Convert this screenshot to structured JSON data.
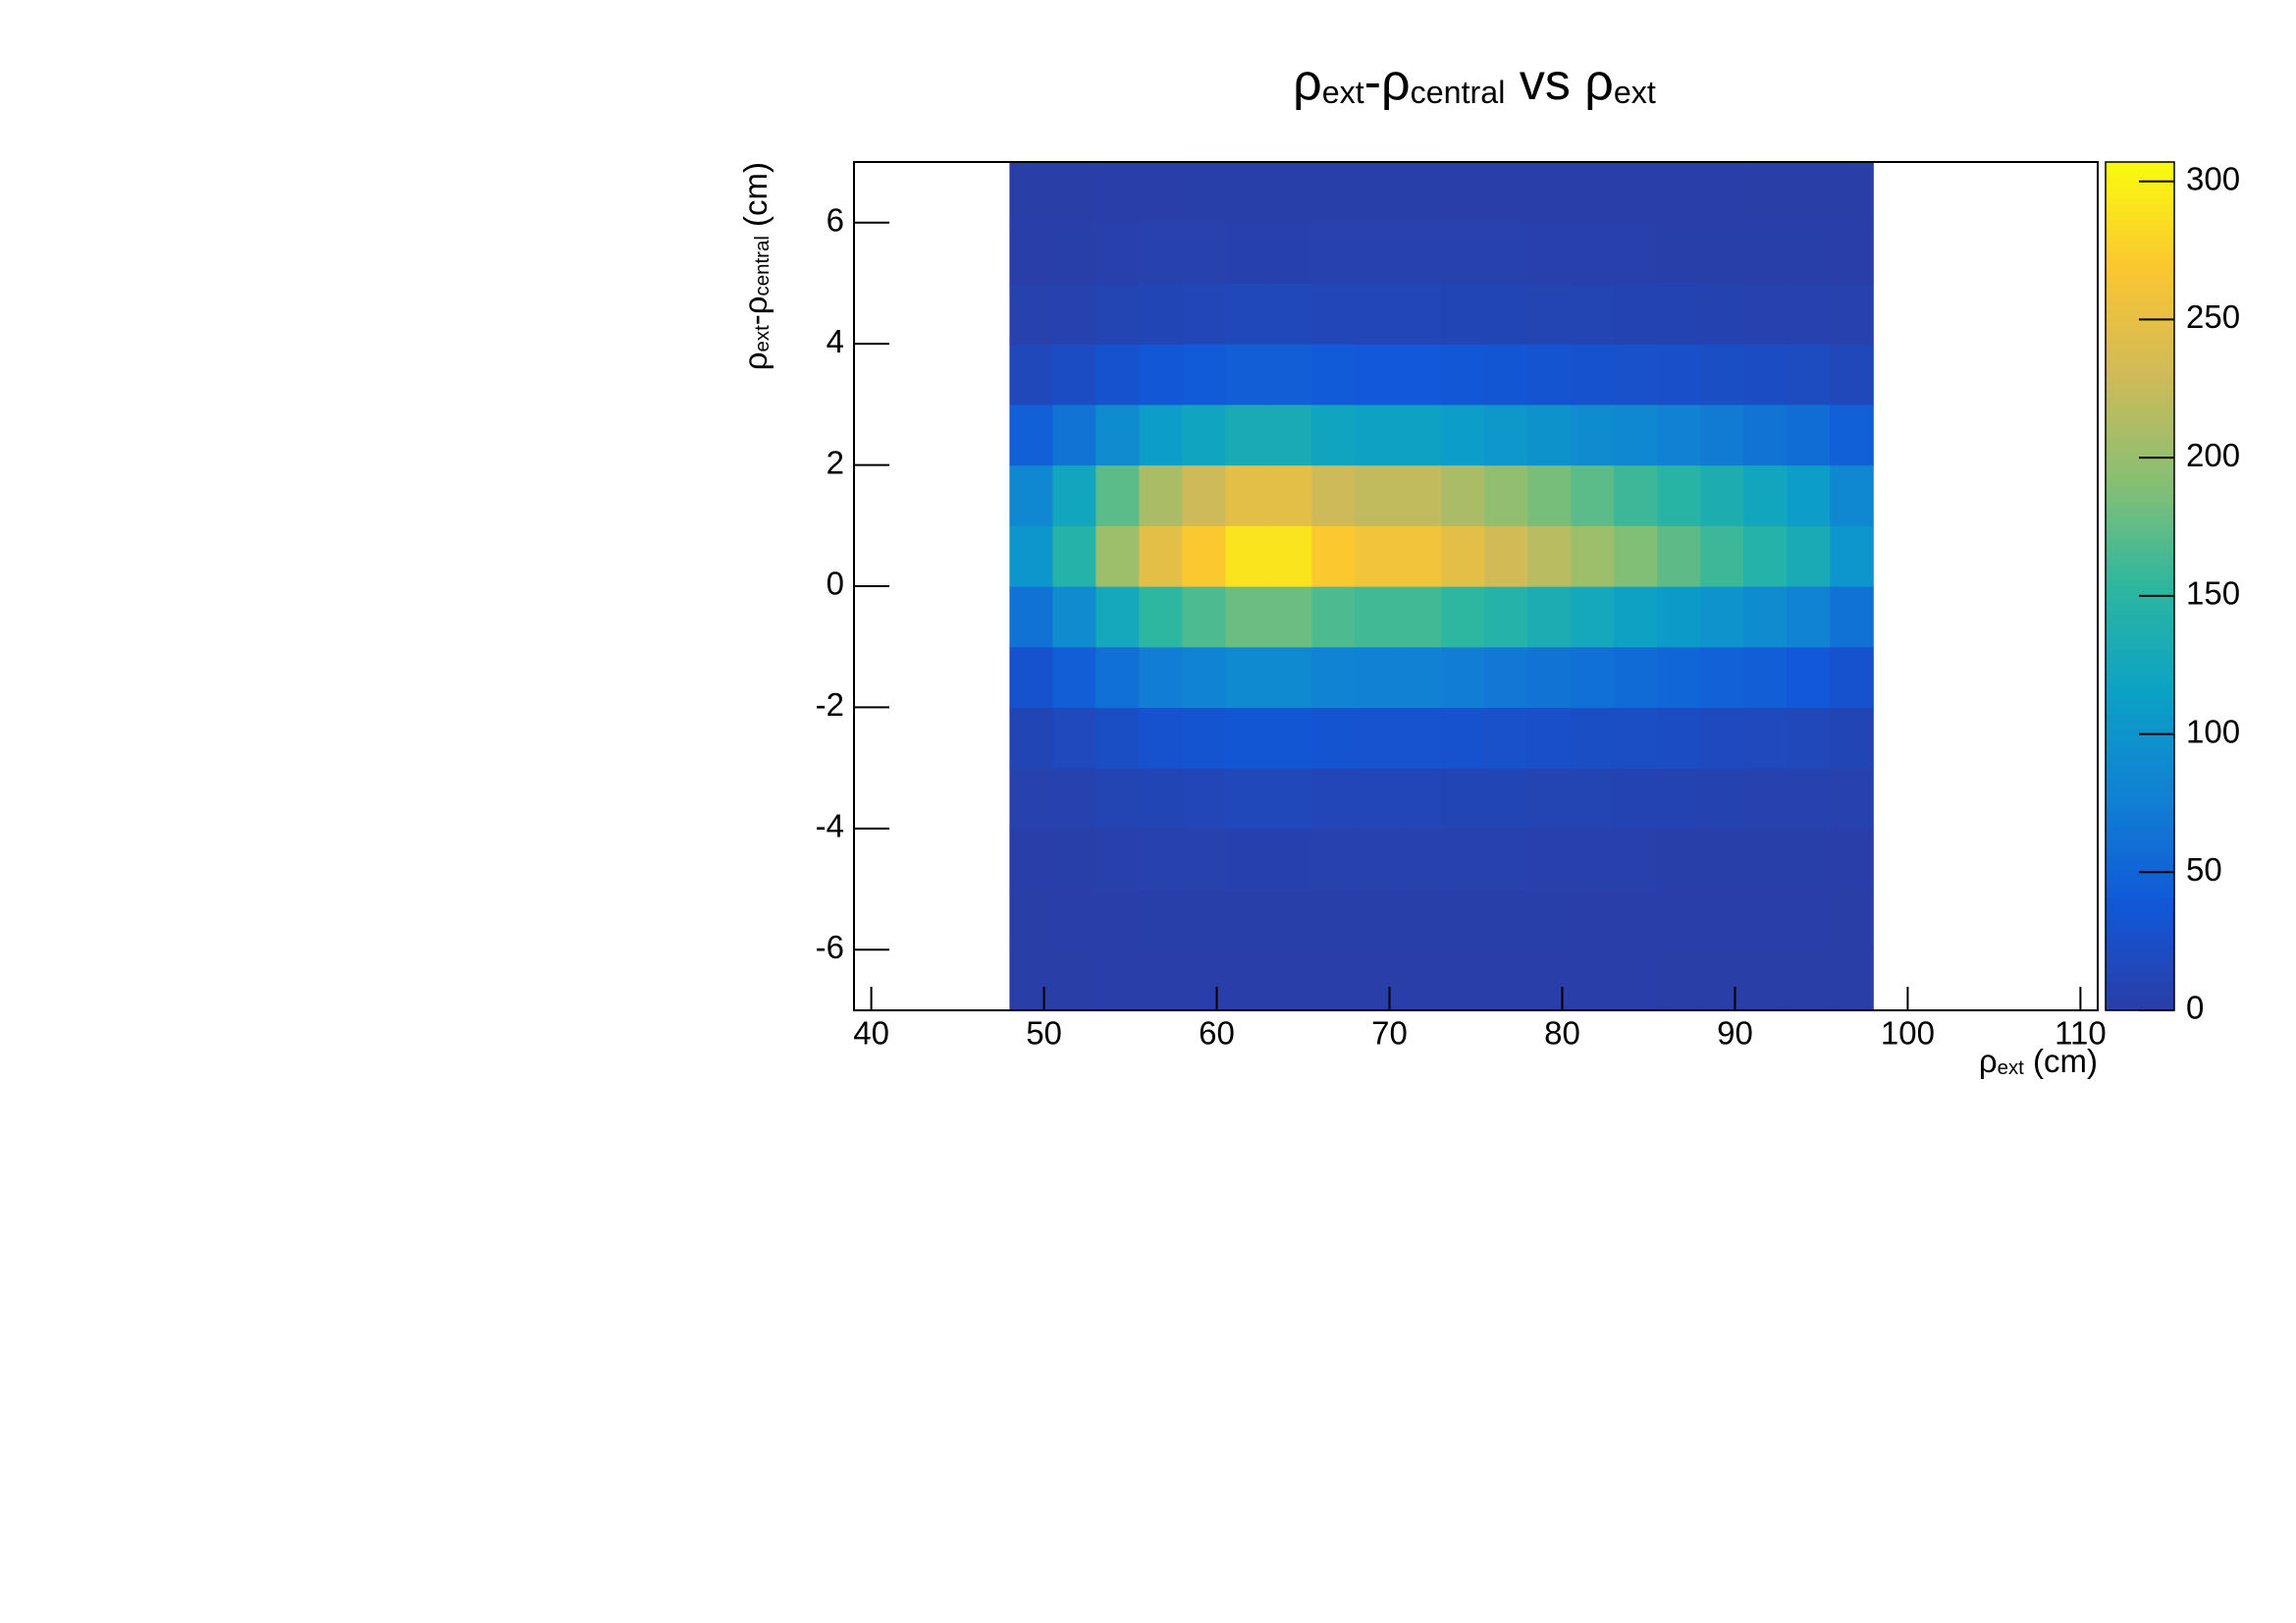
{
  "chart_data": {
    "type": "heatmap",
    "title": [
      "ρ",
      "ext",
      "-ρ",
      "central",
      " vs ρ",
      "ext"
    ],
    "xlabel": [
      "ρ",
      "ext",
      " (cm)"
    ],
    "ylabel": [
      "ρ",
      "ext",
      "-ρ",
      "central",
      " (cm)"
    ],
    "x_edges": [
      48,
      50.5,
      53,
      55.5,
      58,
      60.5,
      63,
      65.5,
      68,
      70.5,
      73,
      75.5,
      78,
      80.5,
      83,
      85.5,
      88,
      90.5,
      93,
      95.5,
      98
    ],
    "y_edges": [
      -7,
      -6,
      -5,
      -4,
      -3,
      -2,
      -1,
      0,
      1,
      2,
      3,
      4,
      5,
      6,
      7
    ],
    "values": [
      [
        1,
        1,
        2,
        2,
        2,
        2,
        2,
        2,
        2,
        2,
        2,
        2,
        2,
        2,
        2,
        1,
        1,
        1,
        1,
        1
      ],
      [
        1,
        2,
        2,
        3,
        3,
        3,
        3,
        3,
        3,
        3,
        3,
        3,
        3,
        2,
        2,
        2,
        2,
        2,
        2,
        1
      ],
      [
        2,
        3,
        4,
        5,
        5,
        6,
        6,
        5,
        5,
        5,
        5,
        5,
        4,
        4,
        4,
        3,
        3,
        3,
        3,
        2
      ],
      [
        5,
        7,
        10,
        12,
        13,
        15,
        15,
        13,
        13,
        13,
        12,
        12,
        11,
        10,
        9,
        9,
        8,
        7,
        7,
        5
      ],
      [
        12,
        17,
        24,
        30,
        32,
        35,
        35,
        32,
        31,
        31,
        30,
        28,
        26,
        24,
        23,
        21,
        19,
        17,
        16,
        12
      ],
      [
        30,
        44,
        61,
        74,
        81,
        87,
        87,
        81,
        78,
        78,
        74,
        70,
        65,
        61,
        57,
        52,
        48,
        44,
        39,
        30
      ],
      [
        63,
        90,
        126,
        153,
        167,
        180,
        180,
        167,
        162,
        162,
        153,
        144,
        135,
        126,
        117,
        108,
        99,
        90,
        81,
        63
      ],
      [
        102,
        145,
        203,
        247,
        270,
        290,
        290,
        270,
        261,
        261,
        247,
        232,
        218,
        203,
        189,
        174,
        160,
        145,
        131,
        102
      ],
      [
        86,
        123,
        173,
        210,
        229,
        247,
        247,
        229,
        222,
        222,
        210,
        197,
        185,
        173,
        160,
        148,
        136,
        123,
        111,
        86
      ],
      [
        46,
        65,
        91,
        111,
        121,
        131,
        131,
        121,
        117,
        117,
        111,
        104,
        98,
        91,
        85,
        78,
        72,
        65,
        59,
        46
      ],
      [
        15,
        22,
        30,
        37,
        40,
        44,
        44,
        40,
        39,
        39,
        37,
        35,
        33,
        30,
        28,
        26,
        24,
        22,
        20,
        15
      ],
      [
        5,
        7,
        10,
        12,
        13,
        15,
        15,
        13,
        13,
        13,
        12,
        12,
        11,
        10,
        9,
        9,
        8,
        7,
        7,
        5
      ],
      [
        2,
        3,
        4,
        5,
        5,
        6,
        6,
        5,
        5,
        5,
        5,
        5,
        4,
        4,
        4,
        3,
        3,
        3,
        3,
        2
      ],
      [
        1,
        1,
        2,
        2,
        3,
        3,
        3,
        3,
        3,
        3,
        2,
        2,
        2,
        2,
        2,
        2,
        2,
        1,
        1,
        1
      ]
    ],
    "xlim": [
      39,
      111
    ],
    "xticks": [
      40,
      50,
      60,
      70,
      80,
      90,
      100,
      110
    ],
    "ylim": [
      -7,
      7
    ],
    "yticks": [
      -6,
      -4,
      -2,
      0,
      2,
      4,
      6
    ],
    "zlim": [
      0,
      307
    ],
    "zticks": [
      0,
      50,
      100,
      150,
      200,
      250,
      300
    ],
    "colorscale": [
      "#2a3da6",
      "#1158d8",
      "#1180d4",
      "#0ba1c6",
      "#2db79f",
      "#88bf73",
      "#d0ba58",
      "#fbc631",
      "#f9fb0e"
    ]
  }
}
